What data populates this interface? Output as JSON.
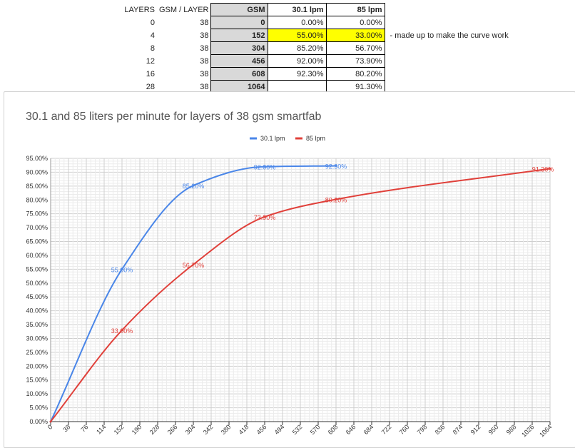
{
  "sheet": {
    "headers": [
      "LAYERS",
      "GSM / LAYER",
      "GSM",
      "30.1 lpm",
      "85 lpm"
    ],
    "rows": [
      [
        "0",
        "38",
        "0",
        "0.00%",
        "0.00%"
      ],
      [
        "4",
        "38",
        "152",
        "55.00%",
        "33.00%"
      ],
      [
        "8",
        "38",
        "304",
        "85.20%",
        "56.70%"
      ],
      [
        "12",
        "38",
        "456",
        "92.00%",
        "73.90%"
      ],
      [
        "16",
        "38",
        "608",
        "92.30%",
        "80.20%"
      ],
      [
        "28",
        "38",
        "1064",
        "",
        "91.30%"
      ]
    ],
    "note": "- made up to make the curve work",
    "highlight_color": "#ffff00"
  },
  "chart_data": {
    "type": "line",
    "title": "30.1 and 85 liters per minute for layers of 38 gsm smartfab",
    "xlabel": "",
    "ylabel": "",
    "legend_position": "top",
    "grid": true,
    "xlim": [
      0,
      1064
    ],
    "ylim": [
      0,
      95
    ],
    "x_ticks": [
      "0",
      "38",
      "76",
      "114",
      "152",
      "190",
      "228",
      "266",
      "304",
      "342",
      "380",
      "418",
      "456",
      "494",
      "532",
      "570",
      "608",
      "646",
      "684",
      "722",
      "760",
      "798",
      "836",
      "874",
      "912",
      "950",
      "988",
      "1026",
      "1064"
    ],
    "y_ticks": [
      "0.00%",
      "5.00%",
      "10.00%",
      "15.00%",
      "20.00%",
      "25.00%",
      "30.00%",
      "35.00%",
      "40.00%",
      "45.00%",
      "50.00%",
      "55.00%",
      "60.00%",
      "65.00%",
      "70.00%",
      "75.00%",
      "80.00%",
      "85.00%",
      "90.00%",
      "95.00%"
    ],
    "series": [
      {
        "name": "30.1 lpm",
        "color": "#4a86e8",
        "points": [
          [
            0,
            0
          ],
          [
            152,
            55.0
          ],
          [
            304,
            85.2
          ],
          [
            456,
            92.0
          ],
          [
            608,
            92.3
          ]
        ],
        "labels": [
          "",
          "55.00%",
          "85.20%",
          "92.00%",
          "92.30%"
        ]
      },
      {
        "name": "85 lpm",
        "color": "#e0403a",
        "points": [
          [
            0,
            0
          ],
          [
            152,
            33.0
          ],
          [
            304,
            56.7
          ],
          [
            456,
            73.9
          ],
          [
            608,
            80.2
          ],
          [
            1064,
            91.3
          ]
        ],
        "labels": [
          "",
          "33.00%",
          "56.70%",
          "73.90%",
          "80.20%",
          "91.30%"
        ]
      }
    ]
  }
}
